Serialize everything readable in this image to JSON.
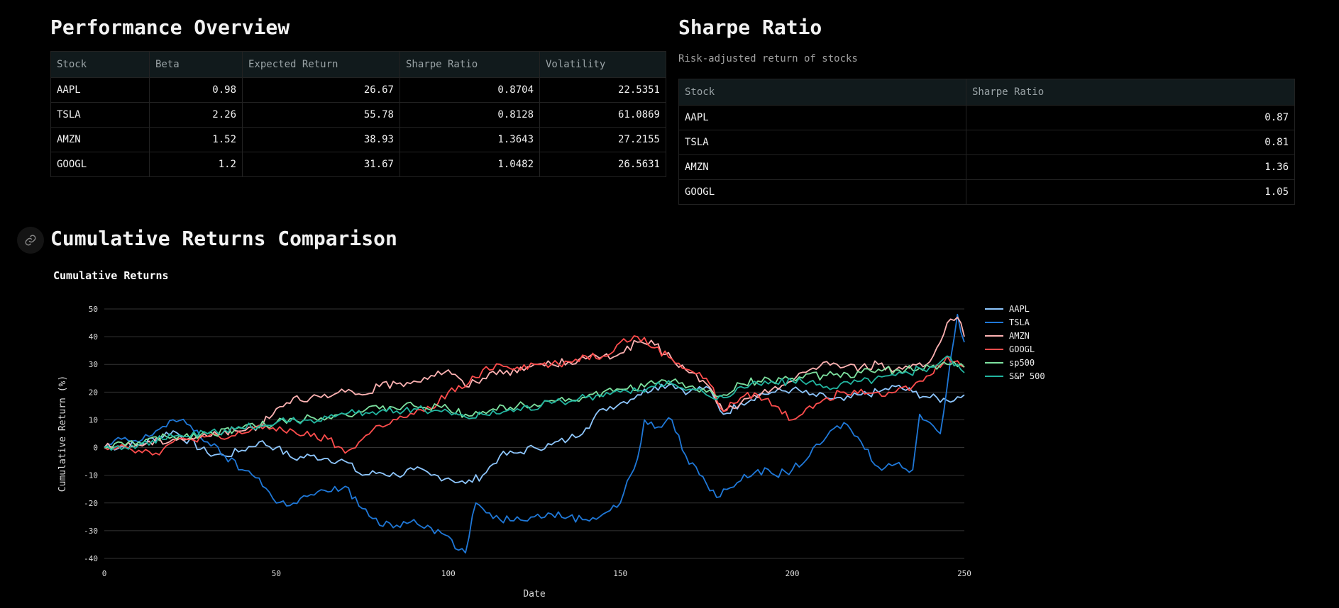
{
  "perf": {
    "title": "Performance Overview",
    "headers": [
      "Stock",
      "Beta",
      "Expected Return",
      "Sharpe Ratio",
      "Volatility"
    ],
    "rows": [
      [
        "AAPL",
        "0.98",
        "26.67",
        "0.8704",
        "22.5351"
      ],
      [
        "TSLA",
        "2.26",
        "55.78",
        "0.8128",
        "61.0869"
      ],
      [
        "AMZN",
        "1.52",
        "38.93",
        "1.3643",
        "27.2155"
      ],
      [
        "GOOGL",
        "1.2",
        "31.67",
        "1.0482",
        "26.5631"
      ]
    ]
  },
  "sharpe": {
    "title": "Sharpe Ratio",
    "subtitle": "Risk-adjusted return of stocks",
    "headers": [
      "Stock",
      "Sharpe Ratio"
    ],
    "rows": [
      [
        "AAPL",
        "0.87"
      ],
      [
        "TSLA",
        "0.81"
      ],
      [
        "AMZN",
        "1.36"
      ],
      [
        "GOOGL",
        "1.05"
      ]
    ]
  },
  "section": {
    "title": "Cumulative Returns Comparison",
    "link_icon": "link-icon"
  },
  "chart_data": {
    "type": "line",
    "title": "Cumulative Returns",
    "xlabel": "Date",
    "ylabel": "Cumulative Return (%)",
    "xlim": [
      0,
      250
    ],
    "ylim": [
      -40,
      50
    ],
    "xticks": [
      0,
      50,
      100,
      150,
      200,
      250
    ],
    "yticks": [
      -40,
      -30,
      -20,
      -10,
      0,
      10,
      20,
      30,
      40,
      50
    ],
    "grid": "horizontal",
    "legend_position": "right",
    "series": [
      {
        "name": "AAPL",
        "color": "#8ec7ff",
        "x": [
          0,
          10,
          20,
          30,
          35,
          40,
          45,
          50,
          55,
          60,
          65,
          70,
          75,
          80,
          85,
          90,
          95,
          100,
          105,
          110,
          115,
          120,
          125,
          130,
          135,
          140,
          145,
          150,
          155,
          160,
          165,
          170,
          175,
          180,
          185,
          190,
          195,
          200,
          205,
          210,
          215,
          220,
          225,
          230,
          235,
          240,
          245,
          250
        ],
        "y": [
          0,
          1,
          6,
          -2,
          -3,
          -1,
          2,
          0,
          -4,
          -3,
          -4,
          -5,
          -10,
          -9,
          -10,
          -8,
          -10,
          -11,
          -13,
          -10,
          -3,
          -2,
          0,
          1,
          3,
          7,
          14,
          16,
          19,
          22,
          23,
          20,
          22,
          12,
          16,
          19,
          20,
          21,
          19,
          18,
          17,
          19,
          20,
          22,
          20,
          18,
          17,
          19
        ]
      },
      {
        "name": "TSLA",
        "color": "#1f78d8",
        "x": [
          0,
          5,
          10,
          15,
          20,
          25,
          30,
          35,
          40,
          45,
          50,
          55,
          60,
          65,
          70,
          75,
          80,
          85,
          90,
          95,
          100,
          103,
          105,
          108,
          110,
          115,
          120,
          125,
          130,
          135,
          140,
          145,
          150,
          153,
          155,
          157,
          160,
          165,
          170,
          172,
          175,
          178,
          180,
          185,
          190,
          195,
          200,
          205,
          210,
          215,
          220,
          225,
          230,
          235,
          237,
          240,
          243,
          245,
          248,
          250
        ],
        "y": [
          0,
          3,
          2,
          6,
          10,
          8,
          2,
          -3,
          -8,
          -11,
          -20,
          -20,
          -17,
          -16,
          -14,
          -22,
          -28,
          -28,
          -26,
          -29,
          -32,
          -37,
          -38,
          -20,
          -22,
          -26,
          -25,
          -25,
          -24,
          -25,
          -26,
          -24,
          -20,
          -10,
          -4,
          10,
          7,
          10,
          -6,
          -7,
          -13,
          -18,
          -15,
          -12,
          -8,
          -10,
          -8,
          -3,
          4,
          9,
          2,
          -7,
          -6,
          -8,
          12,
          9,
          5,
          22,
          48,
          38
        ]
      },
      {
        "name": "AMZN",
        "color": "#ffb3b3",
        "x": [
          0,
          10,
          20,
          30,
          35,
          40,
          45,
          50,
          55,
          60,
          65,
          70,
          75,
          80,
          85,
          90,
          95,
          100,
          105,
          110,
          115,
          120,
          125,
          130,
          135,
          140,
          145,
          150,
          155,
          160,
          165,
          170,
          175,
          180,
          185,
          190,
          195,
          200,
          205,
          210,
          215,
          220,
          225,
          230,
          235,
          240,
          243,
          245,
          248,
          250
        ],
        "y": [
          0,
          1,
          3,
          4,
          6,
          6,
          8,
          14,
          18,
          18,
          18,
          20,
          19,
          22,
          23,
          24,
          26,
          28,
          22,
          25,
          28,
          27,
          30,
          30,
          31,
          32,
          33,
          34,
          38,
          37,
          32,
          27,
          23,
          13,
          16,
          18,
          22,
          24,
          28,
          31,
          29,
          29,
          30,
          28,
          30,
          31,
          38,
          45,
          47,
          40
        ]
      },
      {
        "name": "GOOGL",
        "color": "#ff4d4d",
        "x": [
          0,
          5,
          10,
          15,
          20,
          25,
          30,
          35,
          40,
          45,
          50,
          55,
          60,
          65,
          70,
          75,
          80,
          85,
          90,
          95,
          100,
          105,
          110,
          115,
          120,
          125,
          130,
          135,
          140,
          145,
          150,
          155,
          160,
          165,
          170,
          175,
          180,
          185,
          190,
          195,
          200,
          205,
          210,
          215,
          220,
          225,
          230,
          235,
          240,
          245,
          250
        ],
        "y": [
          0,
          1,
          -1,
          -2,
          2,
          3,
          4,
          3,
          5,
          8,
          6,
          6,
          4,
          3,
          -2,
          3,
          8,
          10,
          12,
          14,
          20,
          22,
          28,
          30,
          29,
          30,
          30,
          31,
          33,
          33,
          38,
          40,
          36,
          32,
          28,
          25,
          13,
          18,
          19,
          15,
          10,
          15,
          18,
          20,
          21,
          20,
          20,
          22,
          26,
          33,
          29
        ]
      },
      {
        "name": "sp500",
        "color": "#7ee2a0",
        "x": [
          0,
          10,
          20,
          30,
          40,
          50,
          60,
          70,
          80,
          90,
          100,
          105,
          110,
          120,
          130,
          140,
          150,
          160,
          165,
          170,
          175,
          180,
          185,
          190,
          200,
          210,
          220,
          230,
          240,
          245,
          250
        ],
        "y": [
          0,
          2,
          4,
          5,
          7,
          9,
          11,
          12,
          14,
          15,
          14,
          12,
          13,
          15,
          17,
          18,
          21,
          23,
          24,
          22,
          20,
          19,
          23,
          24,
          25,
          26,
          27,
          28,
          29,
          30,
          29
        ]
      },
      {
        "name": "S&P 500",
        "color": "#22b5a0",
        "x": [
          0,
          10,
          20,
          30,
          40,
          50,
          60,
          70,
          80,
          90,
          100,
          105,
          110,
          120,
          130,
          140,
          150,
          160,
          165,
          170,
          175,
          180,
          185,
          190,
          200,
          210,
          220,
          230,
          240,
          245,
          250
        ],
        "y": [
          0,
          1,
          4,
          5,
          7,
          9,
          10,
          12,
          13,
          14,
          13,
          11,
          12,
          14,
          16,
          18,
          20,
          22,
          23,
          21,
          19,
          18,
          22,
          23,
          24,
          22,
          24,
          26,
          29,
          33,
          27
        ]
      }
    ]
  }
}
